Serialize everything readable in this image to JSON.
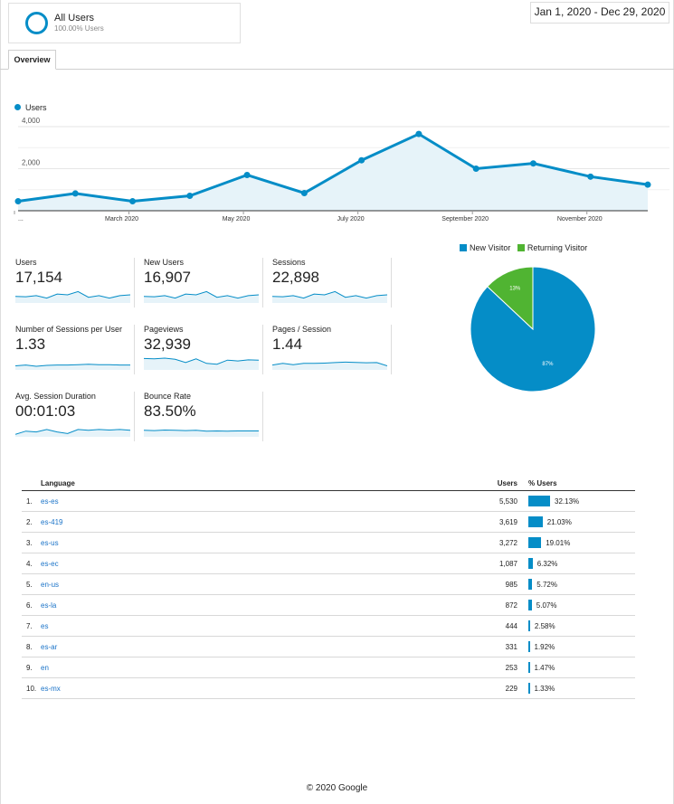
{
  "segment": {
    "name": "All Users",
    "percent": "100.00% Users"
  },
  "date_range": "Jan 1, 2020 - Dec 29, 2020",
  "tabs": [
    {
      "label": "Overview"
    }
  ],
  "main_chart": {
    "legend_label": "Users",
    "y_ticks": [
      "4,000",
      "2,000"
    ],
    "x_ticks": [
      "...",
      "March 2020",
      "May 2020",
      "July 2020",
      "September 2020",
      "November 2020"
    ],
    "color": "#058dc7"
  },
  "chart_data": {
    "type": "area",
    "series": [
      {
        "name": "Users",
        "values": [
          450,
          820,
          450,
          710,
          1700,
          840,
          2400,
          3650,
          2000,
          2250,
          1620,
          1240
        ]
      }
    ],
    "ylim": [
      0,
      4000
    ],
    "grid": true
  },
  "metrics": [
    {
      "label": "Users",
      "value": "17,154",
      "spark": [
        0.4,
        0.38,
        0.45,
        0.3,
        0.55,
        0.5,
        0.7,
        0.35,
        0.45,
        0.3,
        0.45,
        0.5
      ]
    },
    {
      "label": "New Users",
      "value": "16,907",
      "spark": [
        0.4,
        0.38,
        0.45,
        0.3,
        0.55,
        0.5,
        0.7,
        0.35,
        0.45,
        0.3,
        0.45,
        0.5
      ]
    },
    {
      "label": "Sessions",
      "value": "22,898",
      "spark": [
        0.4,
        0.38,
        0.45,
        0.3,
        0.55,
        0.5,
        0.7,
        0.35,
        0.45,
        0.3,
        0.45,
        0.5
      ]
    },
    {
      "label": "Number of Sessions per User",
      "value": "1.33",
      "spark": [
        0.25,
        0.3,
        0.22,
        0.28,
        0.3,
        0.3,
        0.32,
        0.35,
        0.32,
        0.32,
        0.3,
        0.3
      ]
    },
    {
      "label": "Pageviews",
      "value": "32,939",
      "spark": [
        0.7,
        0.68,
        0.72,
        0.65,
        0.45,
        0.68,
        0.4,
        0.35,
        0.6,
        0.55,
        0.62,
        0.6
      ]
    },
    {
      "label": "Pages / Session",
      "value": "1.44",
      "spark": [
        0.3,
        0.4,
        0.32,
        0.4,
        0.4,
        0.42,
        0.45,
        0.48,
        0.46,
        0.44,
        0.45,
        0.25
      ]
    },
    {
      "label": "Avg. Session Duration",
      "value": "00:01:03",
      "spark": [
        0.15,
        0.35,
        0.3,
        0.45,
        0.3,
        0.2,
        0.45,
        0.4,
        0.45,
        0.42,
        0.45,
        0.4
      ]
    },
    {
      "label": "Bounce Rate",
      "value": "83.50%",
      "spark": [
        0.4,
        0.38,
        0.42,
        0.4,
        0.38,
        0.4,
        0.35,
        0.36,
        0.35,
        0.36,
        0.36,
        0.36
      ]
    }
  ],
  "pie": {
    "legend": [
      {
        "label": "New Visitor",
        "color": "#058dc7"
      },
      {
        "label": "Returning Visitor",
        "color": "#50b432"
      }
    ],
    "slices": [
      {
        "label": "New Visitor",
        "value": 87,
        "text": "87%",
        "color": "#058dc7"
      },
      {
        "label": "Returning Visitor",
        "value": 13,
        "text": "13%",
        "color": "#50b432"
      }
    ]
  },
  "language_table": {
    "headers": {
      "language": "Language",
      "users": "Users",
      "pct_users": "% Users"
    },
    "rows": [
      {
        "idx": "1.",
        "lang": "es-es",
        "users": "5,530",
        "pct": "32.13%",
        "share": 32.13
      },
      {
        "idx": "2.",
        "lang": "es-419",
        "users": "3,619",
        "pct": "21.03%",
        "share": 21.03
      },
      {
        "idx": "3.",
        "lang": "es-us",
        "users": "3,272",
        "pct": "19.01%",
        "share": 19.01
      },
      {
        "idx": "4.",
        "lang": "es-ec",
        "users": "1,087",
        "pct": "6.32%",
        "share": 6.32
      },
      {
        "idx": "5.",
        "lang": "en-us",
        "users": "985",
        "pct": "5.72%",
        "share": 5.72
      },
      {
        "idx": "6.",
        "lang": "es-la",
        "users": "872",
        "pct": "5.07%",
        "share": 5.07
      },
      {
        "idx": "7.",
        "lang": "es",
        "users": "444",
        "pct": "2.58%",
        "share": 2.58
      },
      {
        "idx": "8.",
        "lang": "es-ar",
        "users": "331",
        "pct": "1.92%",
        "share": 1.92
      },
      {
        "idx": "9.",
        "lang": "en",
        "users": "253",
        "pct": "1.47%",
        "share": 1.47
      },
      {
        "idx": "10.",
        "lang": "es-mx",
        "users": "229",
        "pct": "1.33%",
        "share": 1.33
      }
    ]
  },
  "footer": "© 2020 Google"
}
